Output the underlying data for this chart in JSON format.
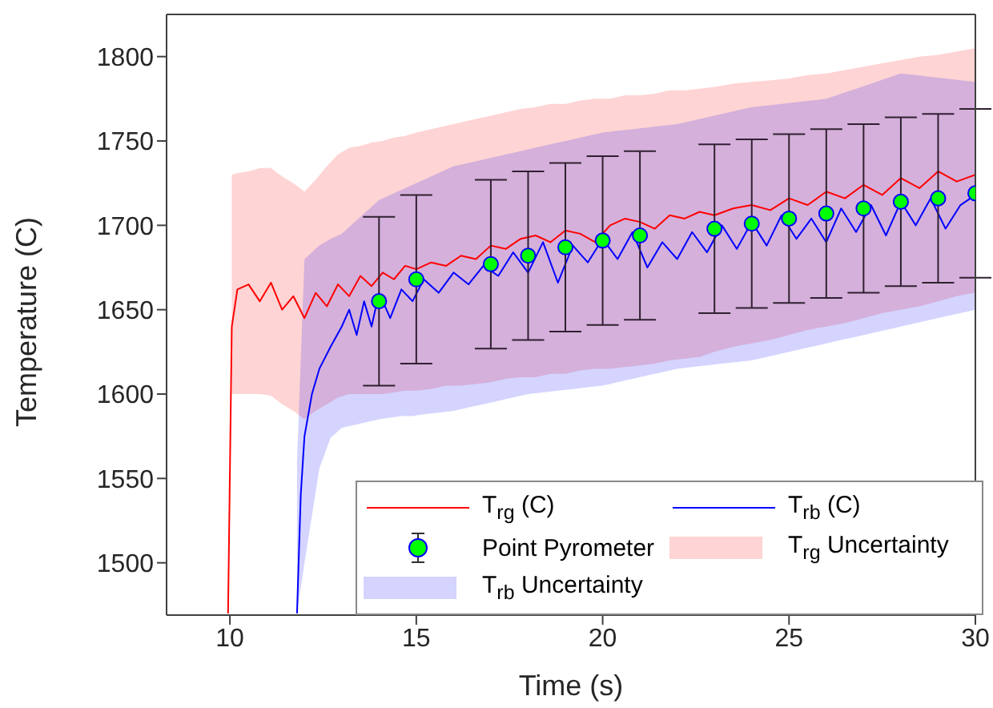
{
  "chart_data": {
    "type": "line",
    "xlabel": "Time (s)",
    "ylabel": "Temperature (C)",
    "xlim": [
      8.3,
      30
    ],
    "xticks": [
      10,
      15,
      20,
      25,
      30
    ],
    "ylim": [
      1469,
      1825
    ],
    "yticks": [
      1500,
      1550,
      1600,
      1650,
      1700,
      1750,
      1800
    ],
    "grid": false,
    "legend": "bottom right",
    "line_style": "solid",
    "annotations": [
      "T$_{rg}$ Uncertainty",
      "T$_{rb}$ Uncertainty"
    ],
    "series": [
      {
        "name": "T$_{rg}$ (C)",
        "color": "#ff0000",
        "marker": "none",
        "x": [
          9.95,
          10.05,
          10.2,
          10.5,
          10.8,
          11.1,
          11.4,
          11.7,
          12.0,
          12.3,
          12.6,
          12.9,
          13.2,
          13.5,
          13.8,
          14.1,
          14.4,
          14.7,
          15.0,
          15.4,
          15.8,
          16.2,
          16.6,
          17.0,
          17.4,
          17.8,
          18.2,
          18.6,
          19.0,
          19.4,
          19.8,
          20.2,
          20.6,
          21.0,
          21.4,
          21.8,
          22.2,
          22.6,
          23.0,
          23.5,
          24.0,
          24.5,
          25.0,
          25.5,
          26.0,
          26.5,
          27.0,
          27.5,
          28.0,
          28.5,
          29.0,
          29.5,
          30.0
        ],
        "values": [
          1470,
          1640,
          1662,
          1665,
          1655,
          1666,
          1650,
          1658,
          1645,
          1660,
          1652,
          1665,
          1658,
          1670,
          1664,
          1672,
          1668,
          1676,
          1674,
          1678,
          1676,
          1682,
          1680,
          1688,
          1686,
          1692,
          1694,
          1690,
          1697,
          1695,
          1690,
          1700,
          1704,
          1702,
          1698,
          1706,
          1704,
          1708,
          1706,
          1710,
          1712,
          1709,
          1716,
          1712,
          1720,
          1716,
          1724,
          1718,
          1728,
          1722,
          1732,
          1726,
          1730
        ],
        "lower": [
          null,
          1600,
          1600,
          1600,
          1600,
          1599,
          1594,
          1590,
          1585,
          1590,
          1594,
          1598,
          1600,
          1600,
          1600,
          1600,
          1601,
          1602,
          1602,
          1603,
          1605,
          1605,
          1606,
          1607,
          1609,
          1610,
          1610,
          1612,
          1612,
          1614,
          1615,
          1615,
          1616,
          1617,
          1618,
          1620,
          1621,
          1622,
          1625,
          1628,
          1630,
          1632,
          1635,
          1638,
          1640,
          1642,
          1645,
          1648,
          1650,
          1652,
          1655,
          1658,
          1660
        ],
        "upper": [
          null,
          1730,
          1731,
          1732,
          1734,
          1734,
          1729,
          1725,
          1720,
          1727,
          1735,
          1742,
          1746,
          1747,
          1749,
          1750,
          1752,
          1753,
          1755,
          1757,
          1759,
          1761,
          1763,
          1765,
          1767,
          1769,
          1770,
          1772,
          1772,
          1774,
          1775,
          1775,
          1777,
          1777,
          1778,
          1780,
          1780,
          1781,
          1782,
          1784,
          1785,
          1786,
          1787,
          1789,
          1790,
          1792,
          1794,
          1796,
          1798,
          1800,
          1801,
          1803,
          1805
        ]
      },
      {
        "name": "T$_{rb}$ (C)",
        "color": "#0000ff",
        "marker": "none",
        "x": [
          11.8,
          11.9,
          12.0,
          12.2,
          12.4,
          12.7,
          13.0,
          13.2,
          13.4,
          13.6,
          13.8,
          14.0,
          14.3,
          14.6,
          14.9,
          15.2,
          15.6,
          16.0,
          16.4,
          16.8,
          17.2,
          17.6,
          18.0,
          18.4,
          18.8,
          19.2,
          19.6,
          20.0,
          20.4,
          20.8,
          21.2,
          21.6,
          22.0,
          22.4,
          22.8,
          23.2,
          23.6,
          24.0,
          24.4,
          24.8,
          25.2,
          25.6,
          26.0,
          26.4,
          26.8,
          27.2,
          27.6,
          28.0,
          28.4,
          28.8,
          29.2,
          29.6,
          30.0
        ],
        "values": [
          1470,
          1540,
          1575,
          1600,
          1615,
          1628,
          1640,
          1650,
          1635,
          1655,
          1640,
          1660,
          1645,
          1662,
          1655,
          1668,
          1660,
          1672,
          1665,
          1676,
          1670,
          1684,
          1672,
          1690,
          1666,
          1688,
          1678,
          1692,
          1680,
          1696,
          1675,
          1690,
          1680,
          1696,
          1684,
          1700,
          1686,
          1702,
          1688,
          1706,
          1692,
          1704,
          1690,
          1710,
          1696,
          1712,
          1694,
          1714,
          1700,
          1716,
          1698,
          1712,
          1718
        ],
        "lower": [
          1470,
          1485,
          1500,
          1528,
          1556,
          1574,
          1580,
          1581,
          1582,
          1583,
          1584,
          1585,
          1586,
          1587,
          1587,
          1588,
          1589,
          1590,
          1592,
          1594,
          1596,
          1598,
          1600,
          1601,
          1602,
          1603,
          1604,
          1605,
          1607,
          1609,
          1611,
          1613,
          1615,
          1616,
          1617,
          1618,
          1619,
          1620,
          1622,
          1624,
          1626,
          1628,
          1630,
          1632,
          1634,
          1636,
          1638,
          1640,
          1642,
          1644,
          1646,
          1648,
          1650
        ],
        "upper": [
          1560,
          1620,
          1680,
          1684,
          1688,
          1692,
          1695,
          1699,
          1703,
          1707,
          1711,
          1715,
          1718,
          1721,
          1724,
          1727,
          1731,
          1735,
          1737,
          1739,
          1741,
          1743,
          1745,
          1747,
          1749,
          1751,
          1753,
          1755,
          1756,
          1757,
          1758,
          1759,
          1760,
          1762,
          1764,
          1766,
          1768,
          1770,
          1771,
          1772,
          1773,
          1774,
          1775,
          1778,
          1781,
          1784,
          1787,
          1790,
          1789,
          1788,
          1787,
          1786,
          1785
        ]
      },
      {
        "name": "Point Pyrometer",
        "type": "scatter",
        "color": "#00ff00",
        "marker": "circle",
        "x": [
          14,
          15,
          17,
          18,
          19,
          20,
          21,
          23,
          24,
          25,
          26,
          27,
          28,
          29,
          30
        ],
        "values": [
          1655,
          1668,
          1677,
          1682,
          1687,
          1691,
          1694,
          1698,
          1701,
          1704,
          1707,
          1710,
          1714,
          1716,
          1719
        ],
        "errors": [
          50,
          50,
          50,
          50,
          50,
          50,
          50,
          50,
          50,
          50,
          50,
          50,
          50,
          50,
          50
        ]
      }
    ]
  }
}
